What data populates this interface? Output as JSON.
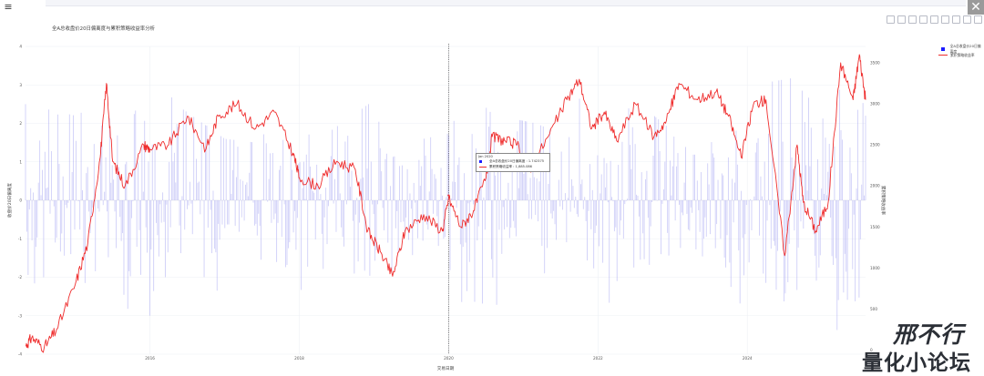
{
  "toolbar": {
    "menu_icon": "≡",
    "close_icon": "✕"
  },
  "chart_data": {
    "type": "bar+line",
    "title": "全A总收盘价20日偏离度与累积策略收益率分析",
    "xlabel": "交易日期",
    "ylabel_left": "收盘价20日偏离度",
    "ylabel_right": "累积策略收益率",
    "x_range": [
      "2014-05",
      "2025-08"
    ],
    "x_ticks": [
      "2016",
      "2018",
      "2020",
      "2022",
      "2024"
    ],
    "y_left_range": [
      -4,
      4
    ],
    "y_left_ticks": [
      "4",
      "3",
      "2",
      "1",
      "0",
      "-1",
      "-2",
      "-3",
      "-4"
    ],
    "y_right_range": [
      -50,
      3700
    ],
    "y_right_ticks": [
      "3500",
      "3000",
      "2500",
      "2000",
      "1500",
      "1000",
      "500",
      "0"
    ],
    "hover_date": "2020-01",
    "legend": {
      "position": "top-right",
      "entries": [
        "全A总收盘价20日偏离度",
        "累积策略收益率"
      ]
    },
    "tooltip": {
      "date": "Jan 2020",
      "rows": [
        "全A总收盘价20日偏离度 : 1.742375",
        "累积策略收益率 : 1,885.086"
      ]
    },
    "colors": {
      "bar": "#a7a7f2",
      "line": "#ef2d2d",
      "legend_bar": "#1b1bff"
    },
    "series": [
      {
        "name": "累积策略收益率",
        "kind": "line",
        "x": [
          "2014-05",
          "2014-06",
          "2014-08",
          "2014-10",
          "2015-01",
          "2015-03",
          "2015-05",
          "2015-06",
          "2015-07",
          "2015-09",
          "2015-12",
          "2016-01",
          "2016-04",
          "2016-07",
          "2016-10",
          "2016-12",
          "2017-03",
          "2017-06",
          "2017-09",
          "2017-12",
          "2018-01",
          "2018-04",
          "2018-07",
          "2018-10",
          "2018-12",
          "2019-02",
          "2019-04",
          "2019-06",
          "2019-09",
          "2019-12",
          "2020-01",
          "2020-03",
          "2020-05",
          "2020-07",
          "2020-08",
          "2020-10",
          "2020-12",
          "2021-02",
          "2021-05",
          "2021-08",
          "2021-10",
          "2021-12",
          "2022-02",
          "2022-04",
          "2022-07",
          "2022-10",
          "2022-12",
          "2023-02",
          "2023-05",
          "2023-08",
          "2023-10",
          "2023-12",
          "2024-02",
          "2024-04",
          "2024-07",
          "2024-09",
          "2024-10",
          "2024-12",
          "2025-02",
          "2025-04",
          "2025-06",
          "2025-07",
          "2025-08"
        ],
        "values": [
          50,
          150,
          30,
          250,
          800,
          1300,
          2350,
          3250,
          2300,
          2000,
          2500,
          2450,
          2500,
          2850,
          2450,
          2850,
          3000,
          2700,
          2900,
          2400,
          2100,
          2000,
          2300,
          2200,
          1450,
          1200,
          900,
          1450,
          1650,
          1450,
          1850,
          1500,
          1700,
          2100,
          2600,
          2550,
          2500,
          2200,
          2600,
          3050,
          3300,
          2700,
          2900,
          2550,
          3000,
          2600,
          2800,
          3250,
          3050,
          3150,
          2850,
          2350,
          3000,
          3050,
          1150,
          2500,
          1800,
          1450,
          1800,
          3500,
          3050,
          3600,
          3050
        ]
      },
      {
        "name": "全A总收盘价20日偏离度",
        "kind": "bar",
        "note_values": "daily deviation values, approx envelope",
        "x": [
          "2014-05",
          "2015-01",
          "2015-06",
          "2015-09",
          "2016-01",
          "2016-06",
          "2017-01",
          "2017-06",
          "2018-01",
          "2018-06",
          "2019-01",
          "2019-04",
          "2019-09",
          "2020-01",
          "2020-03",
          "2020-09",
          "2021-03",
          "2021-09",
          "2022-03",
          "2022-07",
          "2023-01",
          "2023-06",
          "2024-01",
          "2024-02",
          "2024-09",
          "2024-10",
          "2025-04",
          "2025-08"
        ],
        "values": [
          2.5,
          2.2,
          2.6,
          -2.8,
          -3.0,
          2.4,
          1.6,
          1.5,
          -2.6,
          1.8,
          2.6,
          -2.0,
          1.6,
          1.74,
          -3.2,
          2.2,
          2.0,
          1.6,
          -2.8,
          2.6,
          1.8,
          -1.6,
          -3.4,
          3.0,
          3.2,
          3.6,
          -3.0,
          2.2
        ]
      }
    ]
  }
}
